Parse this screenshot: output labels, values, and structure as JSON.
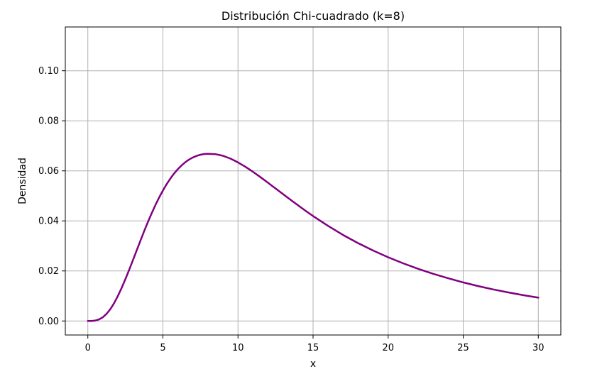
{
  "chart_data": {
    "type": "line",
    "title": "Distribución Chi-cuadrado (k=8)",
    "xlabel": "x",
    "ylabel": "Densidad",
    "xlim": [
      -1.5,
      31.5
    ],
    "ylim": [
      -0.0056,
      0.1175
    ],
    "xticks": [
      0,
      5,
      10,
      15,
      20,
      25,
      30
    ],
    "xtick_labels": [
      "0",
      "5",
      "10",
      "15",
      "20",
      "25",
      "30"
    ],
    "yticks": [
      0.0,
      0.02,
      0.04,
      0.06,
      0.08,
      0.1
    ],
    "ytick_labels": [
      "0.00",
      "0.02",
      "0.04",
      "0.06",
      "0.08",
      "0.10"
    ],
    "grid": true,
    "series": [
      {
        "color": "#800080",
        "x": [
          0,
          0.25,
          0.5,
          0.75,
          1,
          1.25,
          1.5,
          1.75,
          2,
          2.25,
          2.5,
          2.75,
          3,
          3.25,
          3.5,
          3.75,
          4,
          4.25,
          4.5,
          4.75,
          5,
          5.25,
          5.5,
          5.75,
          6,
          6.25,
          6.5,
          6.75,
          7,
          7.25,
          7.5,
          7.75,
          8,
          8.5,
          9,
          9.5,
          10,
          10.5,
          11,
          11.5,
          12,
          12.5,
          13,
          13.5,
          14,
          14.5,
          15,
          16,
          17,
          18,
          19,
          20,
          21,
          22,
          23,
          24,
          25,
          26,
          27,
          28,
          29,
          30
        ],
        "y": [
          0.0,
          3e-05,
          0.0002,
          0.00065,
          0.00152,
          0.00287,
          0.00474,
          0.00712,
          0.00996,
          0.01317,
          0.01669,
          0.02042,
          0.02428,
          0.02818,
          0.03207,
          0.03587,
          0.03954,
          0.04303,
          0.04631,
          0.04936,
          0.05216,
          0.05469,
          0.05696,
          0.05896,
          0.06072,
          0.06223,
          0.0635,
          0.06454,
          0.06537,
          0.066,
          0.06645,
          0.06672,
          0.0668,
          0.06667,
          0.06601,
          0.06488,
          0.06338,
          0.06159,
          0.0596,
          0.05746,
          0.05524,
          0.05297,
          0.0507,
          0.04844,
          0.04622,
          0.04405,
          0.04195,
          0.03799,
          0.03437,
          0.0311,
          0.02814,
          0.02547,
          0.02304,
          0.02084,
          0.01886,
          0.01706,
          0.01543,
          0.01395,
          0.01262,
          0.01142,
          0.01032,
          0.00933
        ]
      }
    ]
  }
}
